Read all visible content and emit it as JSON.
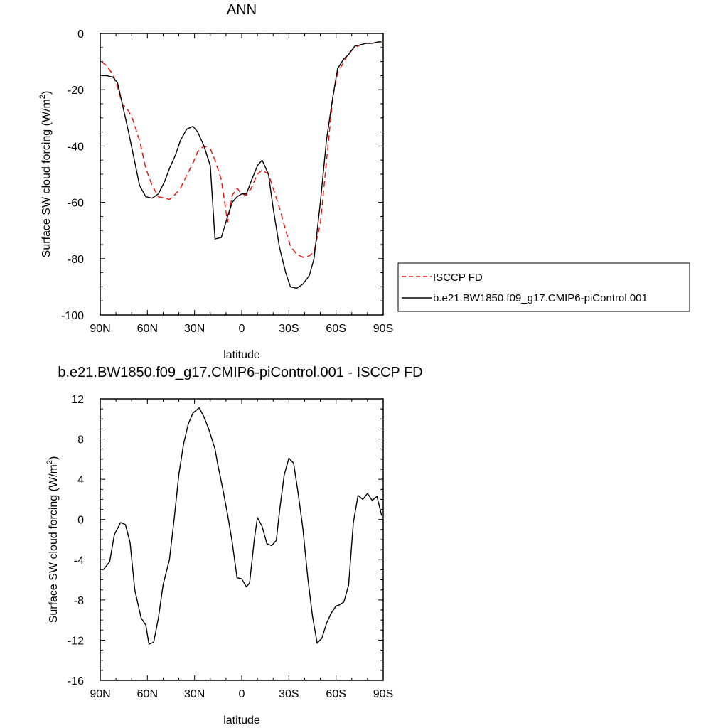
{
  "chart_data": [
    {
      "type": "line",
      "title": "ANN",
      "xlabel": "latitude",
      "ylabel": "Surface SW cloud forcing (W/m",
      "ylabel_superscript": "2",
      "ylabel_suffix": ")",
      "xlim": [
        90,
        -90
      ],
      "ylim": [
        -100,
        0
      ],
      "x_ticks": [
        90,
        60,
        30,
        0,
        -30,
        -60,
        -90
      ],
      "x_tick_labels": [
        "90N",
        "60N",
        "30N",
        "0",
        "30S",
        "60S",
        "90S"
      ],
      "y_ticks": [
        0,
        -20,
        -40,
        -60,
        -80,
        -100
      ],
      "y_tick_labels": [
        "0",
        "-20",
        "-40",
        "-60",
        "-80",
        "-100"
      ],
      "legend_position": "right",
      "series": [
        {
          "name": "ISCCP FD",
          "color": "#ff0000",
          "dash": "dashed",
          "x": [
            89,
            86,
            82,
            79,
            76,
            72,
            69,
            65,
            61,
            57,
            53,
            49,
            46,
            42,
            39,
            35,
            31,
            28,
            24,
            20,
            17,
            13,
            9,
            6,
            3,
            0,
            -3,
            -6,
            -10,
            -13,
            -17,
            -20,
            -24,
            -28,
            -31,
            -35,
            -39,
            -43,
            -46,
            -50,
            -54,
            -58,
            -61,
            -65,
            -68,
            -72,
            -76,
            -79,
            -83,
            -87,
            -89
          ],
          "y": [
            -10,
            -11.5,
            -14.5,
            -19,
            -25,
            -27.5,
            -31,
            -38,
            -48,
            -54,
            -58,
            -58.5,
            -59,
            -57,
            -55,
            -50.5,
            -46,
            -42,
            -40,
            -41,
            -45,
            -52,
            -67,
            -57.5,
            -55,
            -57,
            -57.5,
            -55,
            -50,
            -48.5,
            -50,
            -55,
            -62,
            -70,
            -75.5,
            -78.5,
            -79.5,
            -79,
            -77.5,
            -67.5,
            -45,
            -22.5,
            -14,
            -10,
            -7,
            -5,
            -4,
            -3.5,
            -3.5,
            -3,
            -3
          ]
        },
        {
          "name": "b.e21.BW1850.f09_g17.CMIP6-piControl.001",
          "color": "#000000",
          "dash": "solid",
          "x": [
            89,
            86,
            82,
            79,
            76,
            72,
            69,
            65,
            61,
            57,
            53,
            49,
            46,
            42,
            39,
            35,
            31,
            28,
            24,
            20,
            17,
            13,
            9,
            6,
            3,
            0,
            -3,
            -6,
            -10,
            -13,
            -17,
            -20,
            -24,
            -28,
            -31,
            -35,
            -39,
            -43,
            -46,
            -50,
            -54,
            -58,
            -61,
            -65,
            -68,
            -72,
            -76,
            -79,
            -83,
            -87,
            -89
          ],
          "y": [
            -15,
            -15,
            -15.5,
            -17.5,
            -25,
            -35,
            -43,
            -54,
            -58,
            -58.5,
            -57,
            -52.5,
            -48,
            -43,
            -38,
            -34,
            -33,
            -35,
            -40,
            -47,
            -73,
            -72.5,
            -65,
            -60,
            -58,
            -57,
            -57,
            -52.5,
            -47,
            -45,
            -50,
            -62,
            -76,
            -85,
            -90,
            -90.5,
            -89,
            -86,
            -80,
            -60,
            -37.5,
            -22.5,
            -12.5,
            -9,
            -7.5,
            -4.5,
            -4,
            -3.5,
            -3.5,
            -3,
            -3
          ]
        }
      ]
    },
    {
      "type": "line",
      "title": "b.e21.BW1850.f09_g17.CMIP6-piControl.001 - ISCCP FD",
      "xlabel": "latitude",
      "ylabel": "Surface SW cloud forcing (W/m",
      "ylabel_superscript": "2",
      "ylabel_suffix": ")",
      "xlim": [
        90,
        -90
      ],
      "ylim": [
        -16,
        12
      ],
      "x_ticks": [
        90,
        60,
        30,
        0,
        -30,
        -60,
        -90
      ],
      "x_tick_labels": [
        "90N",
        "60N",
        "30N",
        "0",
        "30S",
        "60S",
        "90S"
      ],
      "y_ticks": [
        12,
        8,
        4,
        0,
        -4,
        -8,
        -12,
        -16
      ],
      "y_tick_labels": [
        "12",
        "8",
        "4",
        "0",
        "-4",
        "-8",
        "-12",
        "-16"
      ],
      "series": [
        {
          "color": "#000000",
          "dash": "solid",
          "x": [
            88,
            84,
            81,
            77,
            74,
            71,
            68,
            64,
            61,
            59,
            56,
            53,
            50,
            46,
            43,
            40,
            37,
            34,
            31,
            27,
            24,
            21,
            17,
            15,
            12,
            9,
            6,
            3,
            0,
            -3,
            -5,
            -8,
            -10,
            -13,
            -16,
            -19,
            -22,
            -24,
            -27,
            -30,
            -33,
            -36,
            -39,
            -42,
            -45,
            -48,
            -51,
            -54,
            -57,
            -60,
            -62,
            -65,
            -68,
            -71,
            -74,
            -77,
            -80,
            -83,
            -86,
            -89
          ],
          "y": [
            -5,
            -4.2,
            -1.5,
            -0.3,
            -0.5,
            -2.3,
            -7,
            -9.8,
            -10.5,
            -12.4,
            -12.2,
            -9.8,
            -6.5,
            -4,
            0,
            4.5,
            7.5,
            9.5,
            10.6,
            11.1,
            10.2,
            9,
            7,
            5.3,
            3,
            0.5,
            -2.3,
            -5.8,
            -5.9,
            -6.7,
            -6.3,
            -2,
            0.2,
            -0.7,
            -2.4,
            -2.6,
            -2.1,
            0.8,
            4.4,
            6.1,
            5.6,
            2.5,
            -1,
            -5.8,
            -9.6,
            -12.3,
            -11.8,
            -10.3,
            -9.3,
            -8.6,
            -8.5,
            -8.2,
            -6.5,
            -0.3,
            2.4,
            2,
            2.6,
            1.9,
            2.3,
            0.4
          ]
        }
      ]
    }
  ]
}
